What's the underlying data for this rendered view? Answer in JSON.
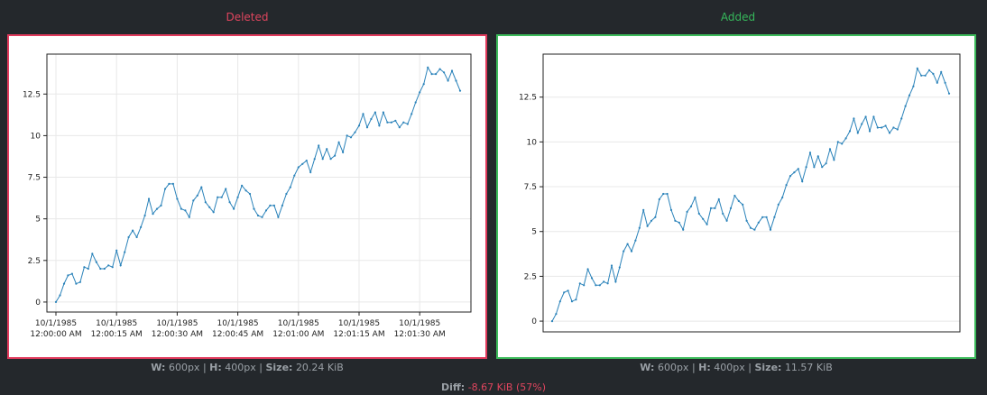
{
  "panels": {
    "deleted": {
      "title": "Deleted",
      "width_label": "W:",
      "width_value": "600px",
      "height_label": "H:",
      "height_value": "400px",
      "size_label": "Size:",
      "size_value": "20.24 KiB",
      "border_color": "#e03a5c"
    },
    "added": {
      "title": "Added",
      "width_label": "W:",
      "width_value": "600px",
      "height_label": "H:",
      "height_value": "400px",
      "size_label": "Size:",
      "size_value": "11.57 KiB",
      "border_color": "#3cba5a"
    }
  },
  "diff": {
    "label": "Diff:",
    "value": "-8.67 KiB (57%)"
  },
  "chart_data": [
    {
      "type": "line",
      "panel": "deleted",
      "title": "",
      "xlabel": "",
      "ylabel": "",
      "ylim": [
        -0.6,
        14.9
      ],
      "yticks": [
        "0",
        "2.5",
        "5",
        "7.5",
        "10",
        "12.5"
      ],
      "xticks": [
        [
          "10/1/1985",
          "12:00:00 AM"
        ],
        [
          "10/1/1985",
          "12:00:15 AM"
        ],
        [
          "10/1/1985",
          "12:00:30 AM"
        ],
        [
          "10/1/1985",
          "12:00:45 AM"
        ],
        [
          "10/1/1985",
          "12:01:00 AM"
        ],
        [
          "10/1/1985",
          "12:01:15 AM"
        ],
        [
          "10/1/1985",
          "12:01:30 AM"
        ]
      ],
      "grid": true,
      "line_color": "#2b83ba",
      "series": [
        {
          "values": [
            0,
            0.4,
            1.1,
            1.6,
            1.7,
            1.1,
            1.2,
            2.1,
            2.0,
            2.9,
            2.4,
            2.0,
            2.0,
            2.2,
            2.1,
            3.1,
            2.2,
            3.0,
            3.9,
            4.3,
            3.9,
            4.5,
            5.2,
            6.2,
            5.3,
            5.6,
            5.8,
            6.8,
            7.1,
            7.1,
            6.2,
            5.6,
            5.5,
            5.1,
            6.1,
            6.4,
            6.9,
            6.0,
            5.7,
            5.4,
            6.3,
            6.3,
            6.8,
            6.0,
            5.6,
            6.3,
            7.0,
            6.7,
            6.5,
            5.6,
            5.2,
            5.1,
            5.5,
            5.8,
            5.8,
            5.1,
            5.8,
            6.5,
            6.9,
            7.6,
            8.1,
            8.3,
            8.5,
            7.8,
            8.6,
            9.4,
            8.6,
            9.2,
            8.6,
            8.8,
            9.6,
            9.0,
            10.0,
            9.9,
            10.2,
            10.6,
            11.3,
            10.5,
            11.0,
            11.4,
            10.6,
            11.4,
            10.8,
            10.8,
            10.9,
            10.5,
            10.8,
            10.7,
            11.3,
            12.0,
            12.6,
            13.1,
            14.1,
            13.7,
            13.7,
            14.0,
            13.8,
            13.3,
            13.9,
            13.3,
            12.7
          ]
        }
      ]
    },
    {
      "type": "line",
      "panel": "added",
      "title": "",
      "xlabel": "",
      "ylabel": "",
      "ylim": [
        -0.6,
        14.9
      ],
      "yticks": [
        "0",
        "2.5",
        "5",
        "7.5",
        "10",
        "12.5"
      ],
      "xticks": [],
      "grid": true,
      "line_color": "#2b83ba",
      "series": [
        {
          "values": [
            0,
            0.4,
            1.1,
            1.6,
            1.7,
            1.1,
            1.2,
            2.1,
            2.0,
            2.9,
            2.4,
            2.0,
            2.0,
            2.2,
            2.1,
            3.1,
            2.2,
            3.0,
            3.9,
            4.3,
            3.9,
            4.5,
            5.2,
            6.2,
            5.3,
            5.6,
            5.8,
            6.8,
            7.1,
            7.1,
            6.2,
            5.6,
            5.5,
            5.1,
            6.1,
            6.4,
            6.9,
            6.0,
            5.7,
            5.4,
            6.3,
            6.3,
            6.8,
            6.0,
            5.6,
            6.3,
            7.0,
            6.7,
            6.5,
            5.6,
            5.2,
            5.1,
            5.5,
            5.8,
            5.8,
            5.1,
            5.8,
            6.5,
            6.9,
            7.6,
            8.1,
            8.3,
            8.5,
            7.8,
            8.6,
            9.4,
            8.6,
            9.2,
            8.6,
            8.8,
            9.6,
            9.0,
            10.0,
            9.9,
            10.2,
            10.6,
            11.3,
            10.5,
            11.0,
            11.4,
            10.6,
            11.4,
            10.8,
            10.8,
            10.9,
            10.5,
            10.8,
            10.7,
            11.3,
            12.0,
            12.6,
            13.1,
            14.1,
            13.7,
            13.7,
            14.0,
            13.8,
            13.3,
            13.9,
            13.3,
            12.7
          ]
        }
      ]
    }
  ]
}
